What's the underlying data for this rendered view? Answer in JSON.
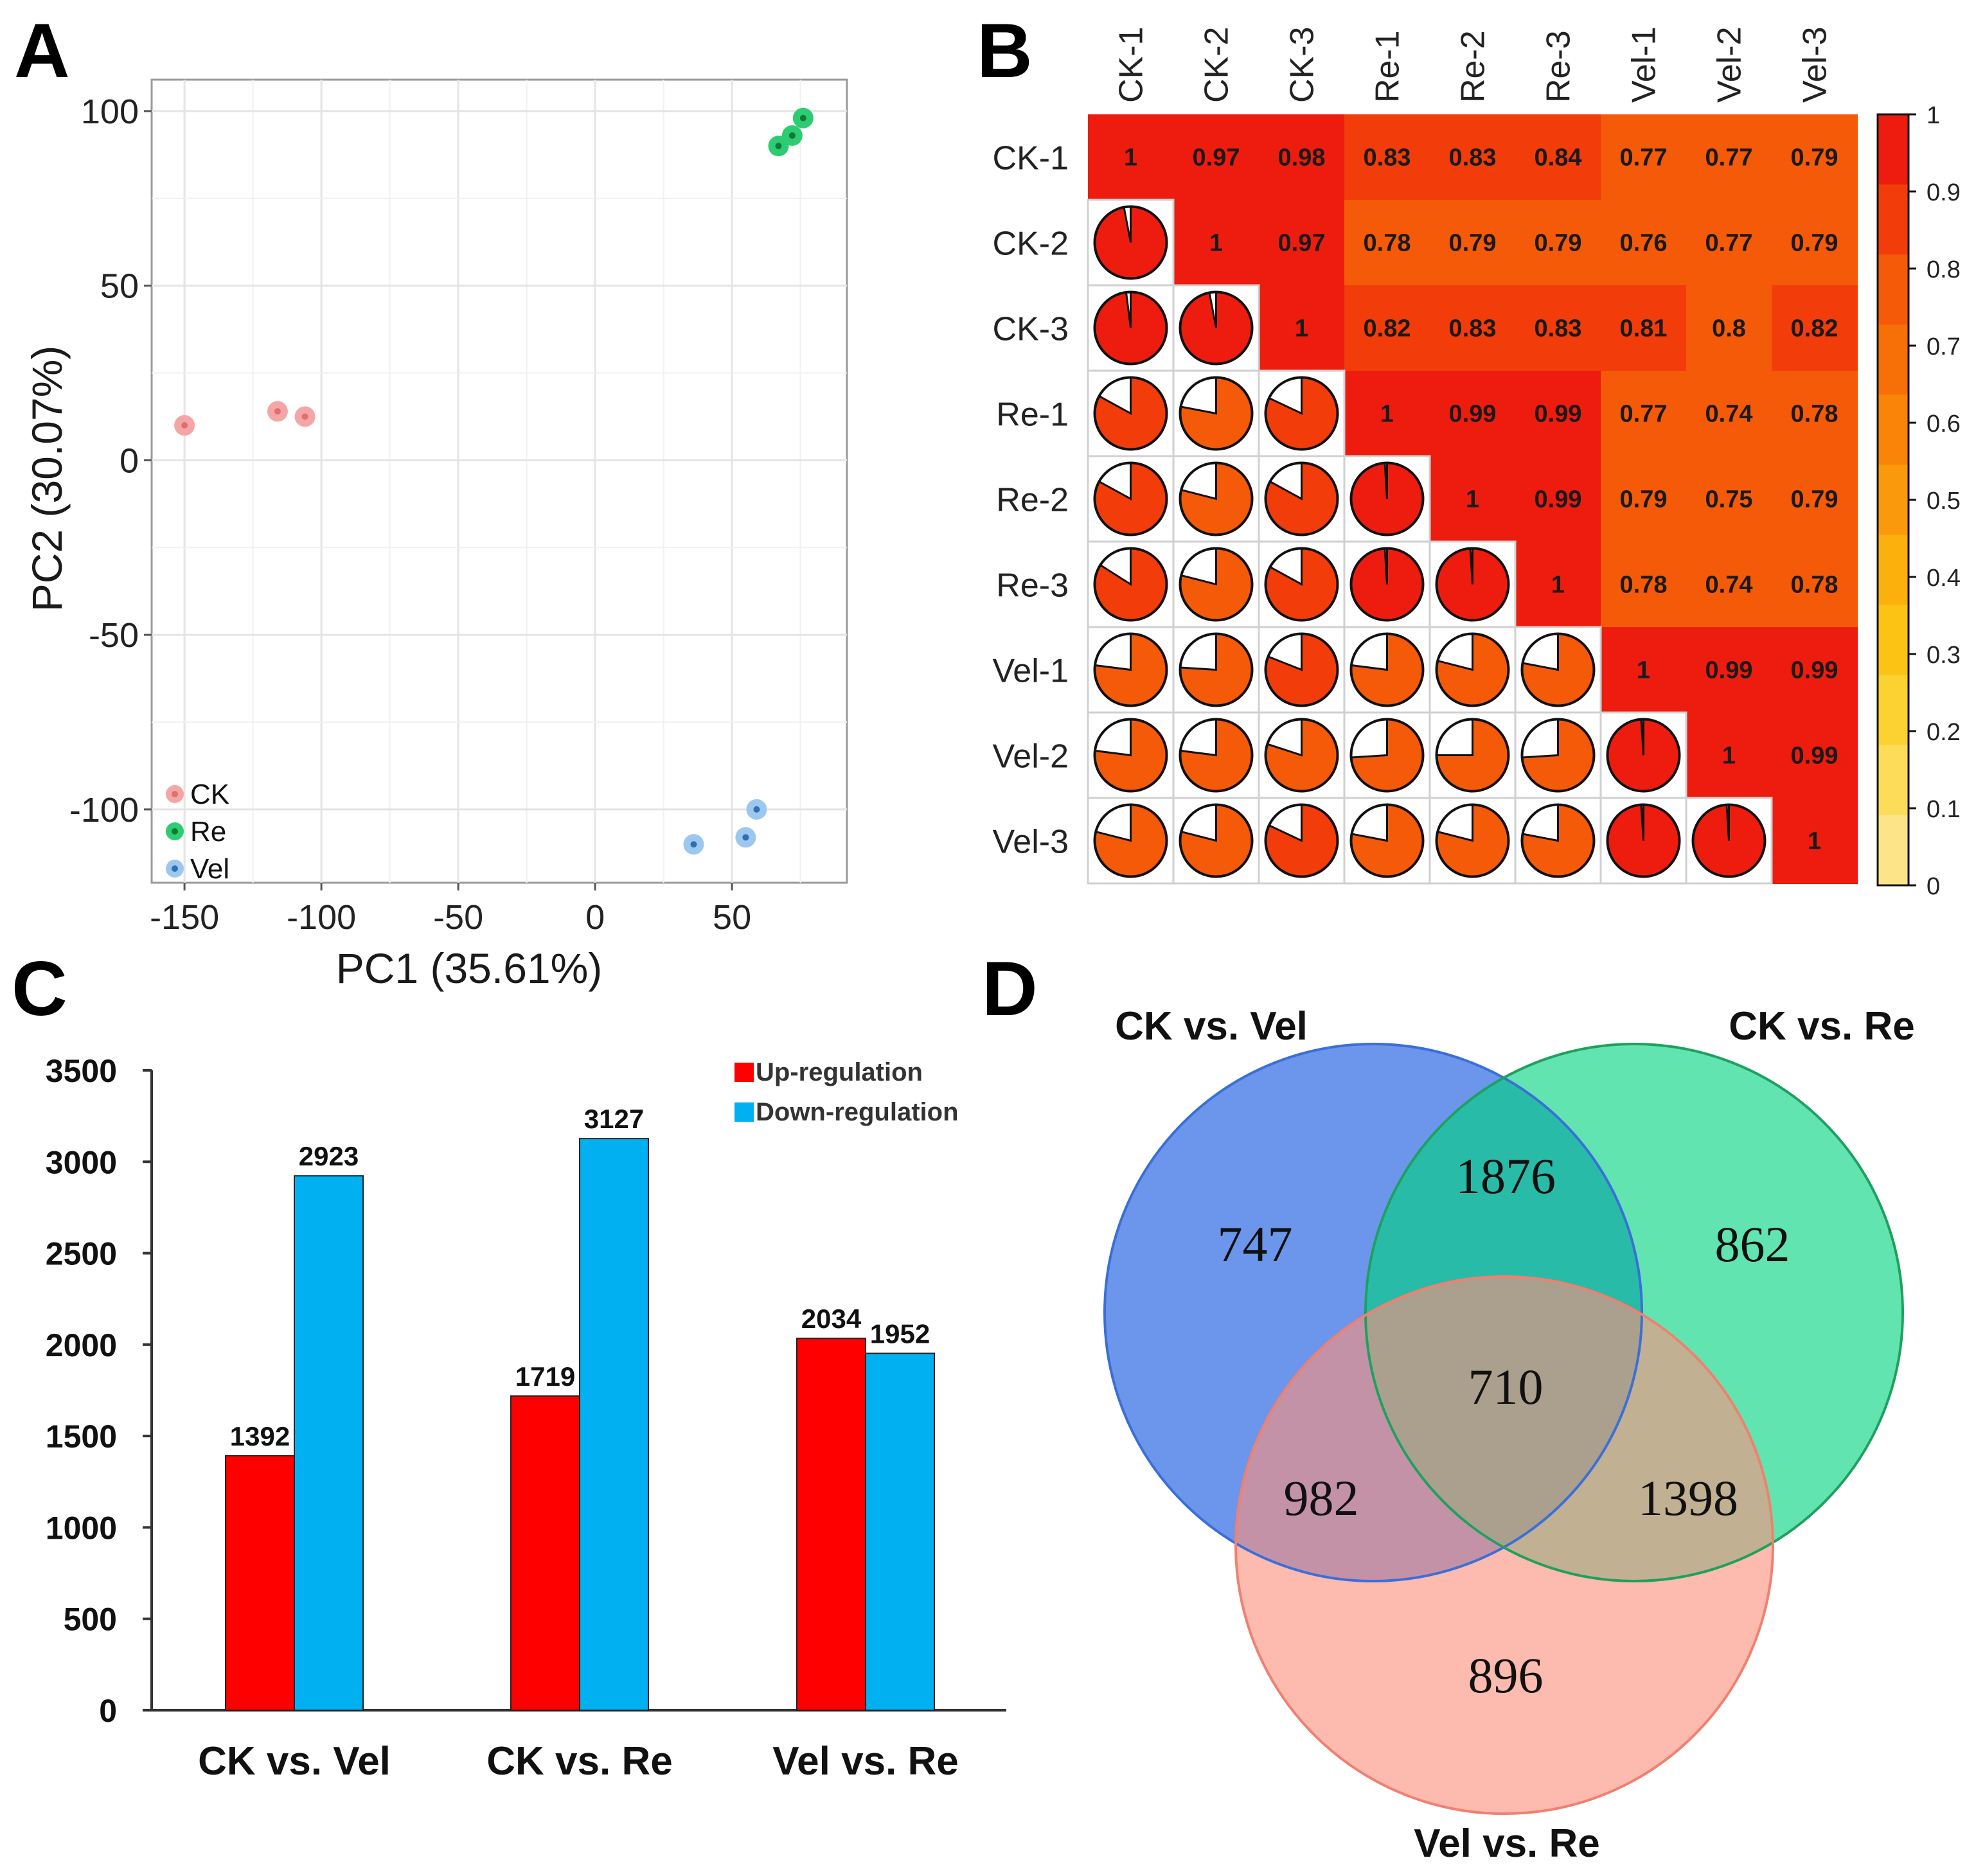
{
  "panels": {
    "A": "A",
    "B": "B",
    "C": "C",
    "D": "D"
  },
  "chart_data": [
    {
      "panel": "A",
      "type": "scatter",
      "xlabel": "PC1 (35.61%)",
      "ylabel": "PC2 (30.07%)",
      "xlim": [
        -162,
        92
      ],
      "ylim": [
        -121,
        109
      ],
      "xticks": [
        -150,
        -100,
        -50,
        0,
        50
      ],
      "xtick_labels": [
        "-150",
        "-100",
        "-50",
        "0",
        "50"
      ],
      "yticks": [
        100,
        50,
        0,
        -50,
        -100
      ],
      "ytick_labels": [
        "100",
        "50",
        "0",
        "-50",
        "-100"
      ],
      "grid": true,
      "legend_position": "bottom-left",
      "series": [
        {
          "name": "CK",
          "color": "#f4a6a6",
          "dot": "#e07070",
          "points": [
            [
              -150,
              10
            ],
            [
              -116,
              14
            ],
            [
              -106,
              12.5
            ]
          ]
        },
        {
          "name": "Re",
          "color": "#2ecc71",
          "dot": "#0b7a3b",
          "points": [
            [
              67,
              90
            ],
            [
              72,
              93
            ],
            [
              76,
              98
            ]
          ]
        },
        {
          "name": "Vel",
          "color": "#9cc8f0",
          "dot": "#2f6fb0",
          "points": [
            [
              36,
              -110
            ],
            [
              55,
              -108
            ],
            [
              59,
              -100
            ]
          ]
        }
      ]
    },
    {
      "panel": "B",
      "type": "heatmap",
      "labels": [
        "CK-1",
        "CK-2",
        "CK-3",
        "Re-1",
        "Re-2",
        "Re-3",
        "Vel-1",
        "Vel-2",
        "Vel-3"
      ],
      "matrix": [
        [
          1,
          0.97,
          0.98,
          0.83,
          0.83,
          0.84,
          0.77,
          0.77,
          0.79
        ],
        [
          0.97,
          1,
          0.97,
          0.78,
          0.79,
          0.79,
          0.76,
          0.77,
          0.79
        ],
        [
          0.98,
          0.97,
          1,
          0.82,
          0.83,
          0.83,
          0.81,
          0.8,
          0.82
        ],
        [
          0.83,
          0.78,
          0.82,
          1,
          0.99,
          0.99,
          0.77,
          0.74,
          0.78
        ],
        [
          0.83,
          0.79,
          0.83,
          0.99,
          1,
          0.99,
          0.79,
          0.75,
          0.79
        ],
        [
          0.84,
          0.79,
          0.83,
          0.99,
          0.99,
          1,
          0.78,
          0.74,
          0.78
        ],
        [
          0.77,
          0.76,
          0.81,
          0.77,
          0.79,
          0.78,
          1,
          0.99,
          0.99
        ],
        [
          0.77,
          0.77,
          0.8,
          0.74,
          0.75,
          0.74,
          0.99,
          1,
          0.99
        ],
        [
          0.79,
          0.79,
          0.82,
          0.78,
          0.79,
          0.78,
          0.99,
          0.99,
          1
        ]
      ],
      "upper": "numbers",
      "lower": "pies",
      "colorbar_ticks": [
        1,
        0.9,
        0.8,
        0.7,
        0.6,
        0.5,
        0.4,
        0.3,
        0.2,
        0.1,
        0
      ],
      "colorbar_labels": [
        "1",
        "0.9",
        "0.8",
        "0.7",
        "0.6",
        "0.5",
        "0.4",
        "0.3",
        "0.2",
        "0.1",
        "0"
      ],
      "colorbar_colors": [
        "#ee1c0e",
        "#f23c0a",
        "#f45a08",
        "#f76f07",
        "#f98408",
        "#fa9a0a",
        "#fbb00c",
        "#fcc314",
        "#fcd230",
        "#fddc5a",
        "#fee489"
      ]
    },
    {
      "panel": "C",
      "type": "bar",
      "categories": [
        "CK vs. Vel",
        "CK vs. Re",
        "Vel vs. Re"
      ],
      "ylim": [
        0,
        3500
      ],
      "yticks": [
        3500,
        3000,
        2500,
        2000,
        1500,
        1000,
        500,
        0
      ],
      "ytick_labels": [
        "3500",
        "3000",
        "2500",
        "2000",
        "1500",
        "1000",
        "500",
        "0"
      ],
      "legend_position": "top-right",
      "series": [
        {
          "name": "Up-regulation",
          "color": "#ff0000",
          "values": [
            1392,
            1719,
            2034
          ],
          "labels": [
            "1392",
            "1719",
            "2034"
          ]
        },
        {
          "name": "Down-regulation",
          "color": "#00b0f0",
          "values": [
            2923,
            3127,
            1952
          ],
          "labels": [
            "2923",
            "3127",
            "1952"
          ]
        }
      ]
    },
    {
      "panel": "D",
      "type": "venn",
      "sets": [
        {
          "name": "CK vs. Vel",
          "color": "#4a7fe6",
          "stroke": "#3b6fd8"
        },
        {
          "name": "CK vs. Re",
          "color": "#00d37f",
          "stroke": "#1fa05f"
        },
        {
          "name": "Vel vs. Re",
          "color": "#fb8f7e",
          "stroke": "#f08070"
        }
      ],
      "regions": {
        "vel_only": "747",
        "re_only": "862",
        "velre_only": "896",
        "vel_re": "1876",
        "vel_velre": "982",
        "re_velre": "1398",
        "all": "710"
      }
    }
  ]
}
